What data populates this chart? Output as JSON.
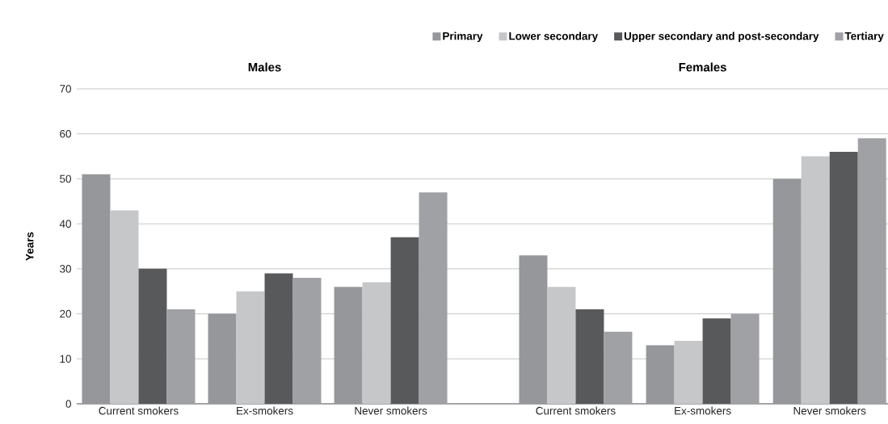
{
  "chart_data": [
    {
      "type": "bar",
      "title": "Males",
      "ylabel": "Years",
      "categories": [
        "Current smokers",
        "Ex-smokers",
        "Never smokers"
      ],
      "series": [
        {
          "color": "#96979b",
          "values": [
            51,
            20,
            26
          ]
        },
        {
          "color": "#c6c7c9",
          "values": [
            43,
            25,
            27
          ]
        },
        {
          "color": "#58595b",
          "values": [
            30,
            29,
            37
          ]
        },
        {
          "color": "#a0a1a5",
          "values": [
            21,
            28,
            47
          ]
        }
      ],
      "ylim": [
        0,
        70
      ],
      "yticks": [
        0,
        10,
        20,
        30,
        40,
        50,
        60,
        70
      ],
      "grid": "y"
    },
    {
      "type": "bar",
      "title": "Females",
      "categories": [
        "Current smokers",
        "Ex-smokers",
        "Never smokers"
      ],
      "series": [
        {
          "name": "Primary",
          "color": "#96979b",
          "values": [
            33,
            13,
            50
          ]
        },
        {
          "name": "Lower secondary",
          "color": "#c6c7c9",
          "values": [
            26,
            14,
            55
          ]
        },
        {
          "name": "Upper secondary and post-secondary",
          "color": "#58595b",
          "values": [
            21,
            19,
            56
          ]
        },
        {
          "name": "Tertiary",
          "color": "#a0a1a5",
          "values": [
            16,
            20,
            59
          ]
        }
      ],
      "ylim": [
        0,
        70
      ],
      "yticks": [
        0,
        10,
        20,
        30,
        40,
        50,
        60,
        70
      ],
      "grid": "y",
      "tick_labels": "x",
      "legend": "top"
    }
  ]
}
